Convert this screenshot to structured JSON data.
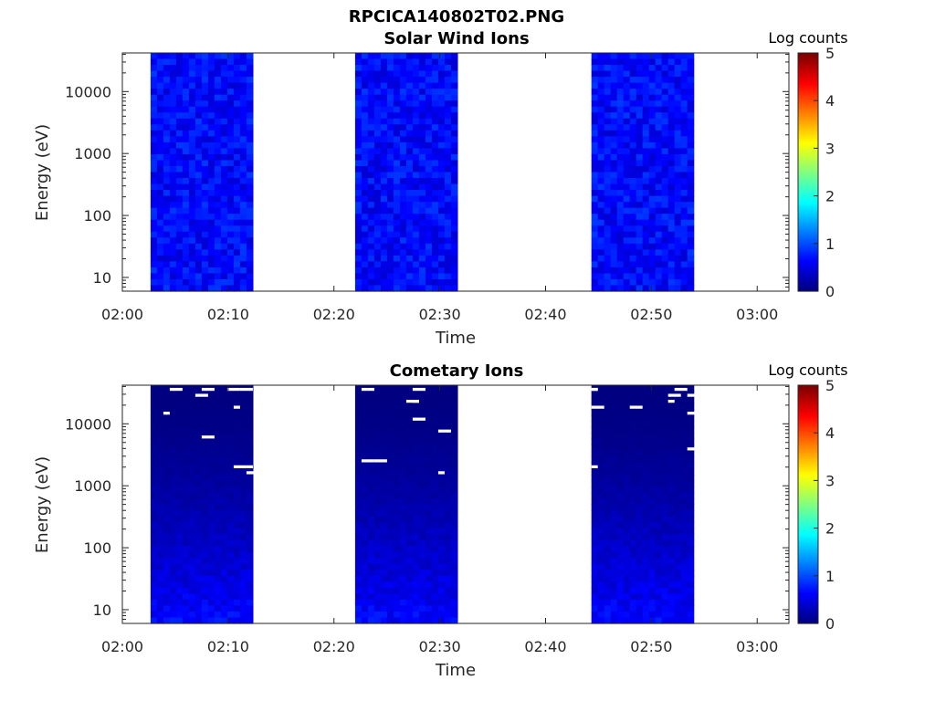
{
  "figure_title": "RPCICA140802T02.PNG",
  "chart_data": [
    {
      "type": "heatmap",
      "title": "Solar Wind Ions",
      "xlabel": "Time",
      "ylabel": "Energy (eV)",
      "colorbar_label": "Log counts",
      "x_ticks": [
        "02:00",
        "02:10",
        "02:20",
        "02:30",
        "02:40",
        "02:50",
        "03:00"
      ],
      "xlim_minutes": [
        0,
        63
      ],
      "y_scale": "log",
      "y_ticks": [
        10,
        100,
        1000,
        10000
      ],
      "ylim": [
        6,
        42000
      ],
      "colorbar_ticks": [
        0,
        1,
        2,
        3,
        4,
        5
      ],
      "clim": [
        0,
        5
      ],
      "colormap": "jet",
      "data_blocks": [
        {
          "start": "02:02:40",
          "end": "02:12:20",
          "typical_log_counts": [
            0.4,
            0.9
          ]
        },
        {
          "start": "02:22:00",
          "end": "02:31:40",
          "typical_log_counts": [
            0.4,
            0.9
          ]
        },
        {
          "start": "02:44:20",
          "end": "02:54:00",
          "typical_log_counts": [
            0.4,
            0.9
          ]
        }
      ]
    },
    {
      "type": "heatmap",
      "title": "Cometary Ions",
      "xlabel": "Time",
      "ylabel": "Energy (eV)",
      "colorbar_label": "Log counts",
      "x_ticks": [
        "02:00",
        "02:10",
        "02:20",
        "02:30",
        "02:40",
        "02:50",
        "03:00"
      ],
      "xlim_minutes": [
        0,
        63
      ],
      "y_scale": "log",
      "y_ticks": [
        10,
        100,
        1000,
        10000
      ],
      "ylim": [
        6,
        42000
      ],
      "colorbar_ticks": [
        0,
        1,
        2,
        3,
        4,
        5
      ],
      "clim": [
        0,
        5
      ],
      "colormap": "jet",
      "data_blocks": [
        {
          "start": "02:02:40",
          "end": "02:12:20",
          "typical_log_counts": [
            0.0,
            0.8
          ]
        },
        {
          "start": "02:22:00",
          "end": "02:31:40",
          "typical_log_counts": [
            0.0,
            0.8
          ]
        },
        {
          "start": "02:44:20",
          "end": "02:54:00",
          "typical_log_counts": [
            0.0,
            0.8
          ]
        }
      ]
    }
  ]
}
